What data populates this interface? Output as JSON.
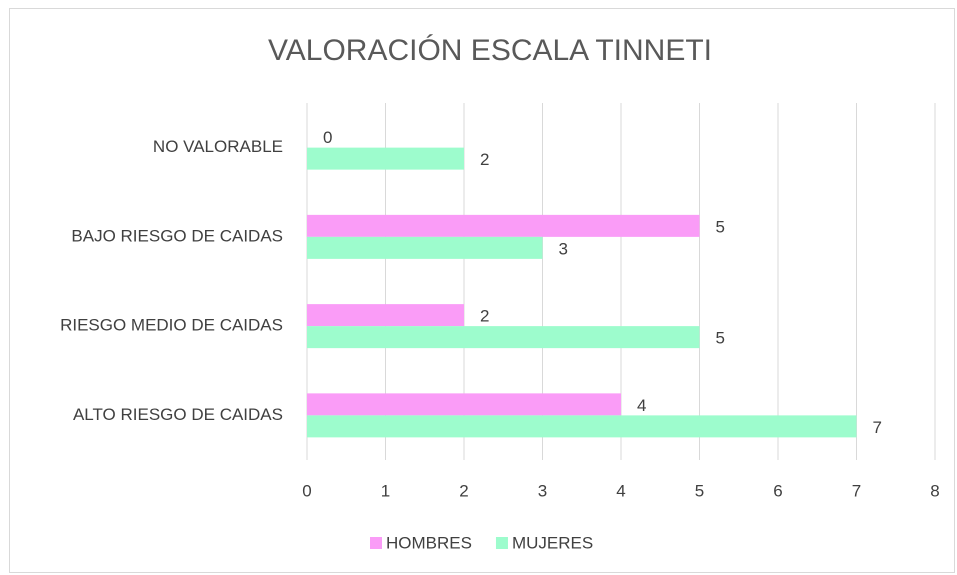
{
  "chart_data": {
    "type": "barh",
    "title": "VALORACIÓN ESCALA TINNETI",
    "categories": [
      "NO VALORABLE",
      "BAJO RIESGO DE CAIDAS",
      "RIESGO MEDIO DE CAIDAS",
      "ALTO RIESGO DE CAIDAS"
    ],
    "series": [
      {
        "name": "HOMBRES",
        "color": "#fa9cf7",
        "values": [
          0,
          5,
          2,
          4
        ]
      },
      {
        "name": "MUJERES",
        "color": "#9dfccd",
        "values": [
          2,
          3,
          5,
          7
        ]
      }
    ],
    "xlim": [
      0,
      8
    ],
    "xticks": [
      0,
      1,
      2,
      3,
      4,
      5,
      6,
      7,
      8
    ],
    "grid": true,
    "legend": "bottom"
  }
}
